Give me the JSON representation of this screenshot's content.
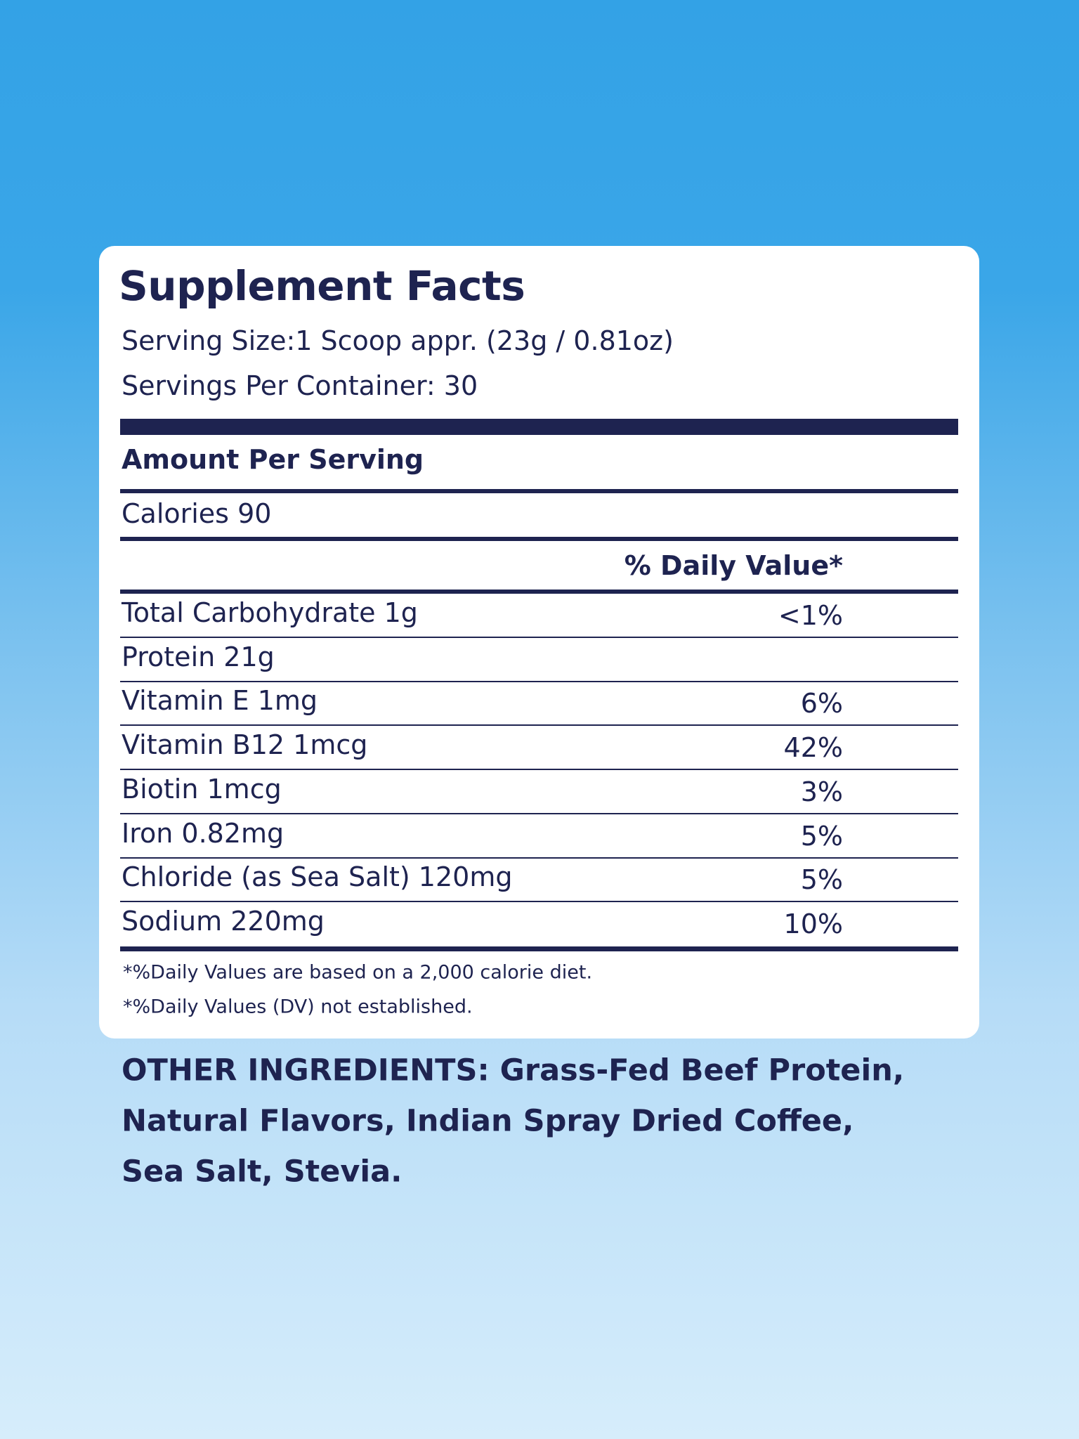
{
  "title": "Supplement Facts",
  "serving_size": "Serving Size:1 Scoop appr. (23g / 0.81oz)",
  "servings_per_container": "Servings Per Container: 30",
  "amount_per_serving": "Amount Per Serving",
  "calories": "Calories 90",
  "dv_header": "% Daily Value*",
  "rows": [
    {
      "name": "Total Carbohydrate 1g",
      "dv": "<1%"
    },
    {
      "name": "Protein 21g"
    },
    {
      "name": "Vitamin E 1mg",
      "dv": "6%"
    },
    {
      "name": "Vitamin B12 1mcg",
      "dv": "42%"
    },
    {
      "name": "Biotin 1mcg",
      "dv": "3%"
    },
    {
      "name": "Iron 0.82mg",
      "dv": "5%"
    },
    {
      "name": "Chloride (as Sea Salt) 120mg",
      "dv": "5%"
    },
    {
      "name": "Sodium 220mg",
      "dv": "10%"
    }
  ],
  "footnotes": [
    "*%Daily Values are based on a 2,000 calorie diet.",
    "*%Daily Values (DV) not established."
  ],
  "other_ingredients": [
    "OTHER INGREDIENTS: Grass-Fed Beef Protein,",
    "Natural Flavors, Indian Spray Dried Coffee,",
    "Sea Salt, Stevia."
  ]
}
